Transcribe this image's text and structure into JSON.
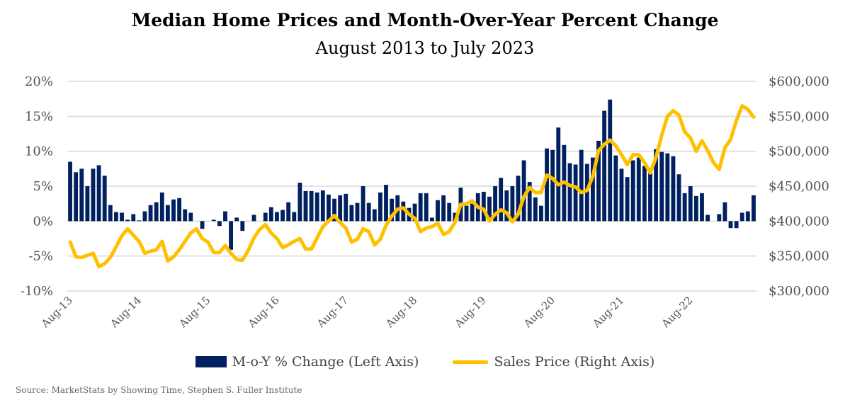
{
  "chart_data": {
    "type": "bar+line",
    "title": "Median Home Prices and Month-Over-Year Percent Change",
    "subtitle": "August 2013 to July 2023",
    "x_start": "Aug-13",
    "x_end": "Jul-23",
    "x_tick_labels": [
      "Aug-13",
      "Aug-14",
      "Aug-15",
      "Aug-16",
      "Aug-17",
      "Aug-18",
      "Aug-19",
      "Aug-20",
      "Aug-21",
      "Aug-22"
    ],
    "left_axis": {
      "ylim": [
        -10,
        20
      ],
      "ticks": [
        "-10%",
        "-5%",
        "0%",
        "5%",
        "10%",
        "15%",
        "20%"
      ],
      "tick_values": [
        -10,
        -5,
        0,
        5,
        10,
        15,
        20
      ]
    },
    "right_axis": {
      "ylim": [
        300000,
        600000
      ],
      "ticks": [
        "$300,000",
        "$350,000",
        "$400,000",
        "$450,000",
        "$500,000",
        "$550,000",
        "$600,000"
      ],
      "tick_values": [
        300000,
        350000,
        400000,
        450000,
        500000,
        550000,
        600000
      ]
    },
    "grid": true,
    "legend_position": "bottom",
    "series": [
      {
        "name": "M-o-Y % Change (Left Axis)",
        "type": "bar",
        "axis": "left",
        "color": "#002060",
        "values": [
          8.5,
          7.0,
          7.5,
          5.0,
          7.5,
          8.0,
          6.5,
          2.3,
          1.3,
          1.2,
          0.2,
          1.0,
          0.1,
          1.4,
          2.3,
          2.7,
          4.1,
          2.3,
          3.1,
          3.3,
          1.7,
          1.2,
          0,
          -1.1,
          0,
          0.2,
          -0.7,
          1.4,
          -4.1,
          0.5,
          -1.4,
          0,
          0.9,
          0,
          1.2,
          2.0,
          1.3,
          1.6,
          2.7,
          1.3,
          5.5,
          4.3,
          4.3,
          4.1,
          4.4,
          3.8,
          3.2,
          3.7,
          3.9,
          2.3,
          2.6,
          5.0,
          2.6,
          1.7,
          4.1,
          5.2,
          3.2,
          3.7,
          2.8,
          1.9,
          2.5,
          4.0,
          4.0,
          0.5,
          3.0,
          3.7,
          2.6,
          1.2,
          4.8,
          2.2,
          2.5,
          4.0,
          4.2,
          3.5,
          5.0,
          6.2,
          4.4,
          5.0,
          6.5,
          8.7,
          5.6,
          3.4,
          2.2,
          10.4,
          10.2,
          13.4,
          10.9,
          8.3,
          8.1,
          10.2,
          8.2,
          9.1,
          11.5,
          15.8,
          17.4,
          9.4,
          7.5,
          6.3,
          8.7,
          9.1,
          7.9,
          7.6,
          10.3,
          9.9,
          9.7,
          9.3,
          6.7,
          4.0,
          5.0,
          3.6,
          4.0,
          0.9,
          0,
          1.0,
          2.7,
          -1.0,
          -1.0,
          1.2,
          1.4,
          3.7
        ]
      },
      {
        "name": "Sales Price (Right Axis)",
        "type": "line",
        "axis": "right",
        "color": "#FFC000",
        "values": [
          370000,
          349000,
          348000,
          351000,
          354000,
          335000,
          339000,
          348000,
          363000,
          379000,
          389000,
          380000,
          371000,
          354000,
          357000,
          359000,
          371000,
          343000,
          349000,
          359000,
          371000,
          383000,
          389000,
          375000,
          370000,
          355000,
          355000,
          365000,
          354000,
          345000,
          344000,
          358000,
          376000,
          388000,
          395000,
          383000,
          375000,
          362000,
          366000,
          371000,
          375000,
          360000,
          360000,
          376000,
          392000,
          400000,
          408000,
          398000,
          390000,
          370000,
          374000,
          389000,
          385000,
          366000,
          374000,
          394000,
          407000,
          417000,
          419000,
          410000,
          404000,
          385000,
          390000,
          392000,
          397000,
          381000,
          385000,
          398000,
          424000,
          425000,
          429000,
          420000,
          417000,
          400000,
          410000,
          416000,
          412000,
          399000,
          410000,
          435000,
          448000,
          441000,
          441000,
          466000,
          461000,
          452000,
          456000,
          451000,
          449000,
          441000,
          444000,
          464000,
          501000,
          510000,
          516000,
          508000,
          495000,
          481000,
          495000,
          495000,
          484000,
          469000,
          491000,
          523000,
          550000,
          558000,
          552000,
          528000,
          519000,
          500000,
          515000,
          501000,
          484000,
          474000,
          505000,
          517000,
          544000,
          565000,
          560000,
          549000
        ]
      }
    ]
  },
  "legend": {
    "bar_label": "M-o-Y % Change (Left Axis)",
    "line_label": "Sales Price (Right Axis)"
  },
  "source": "Source: MarketStats  by Showing Time, Stephen S. Fuller Institute"
}
